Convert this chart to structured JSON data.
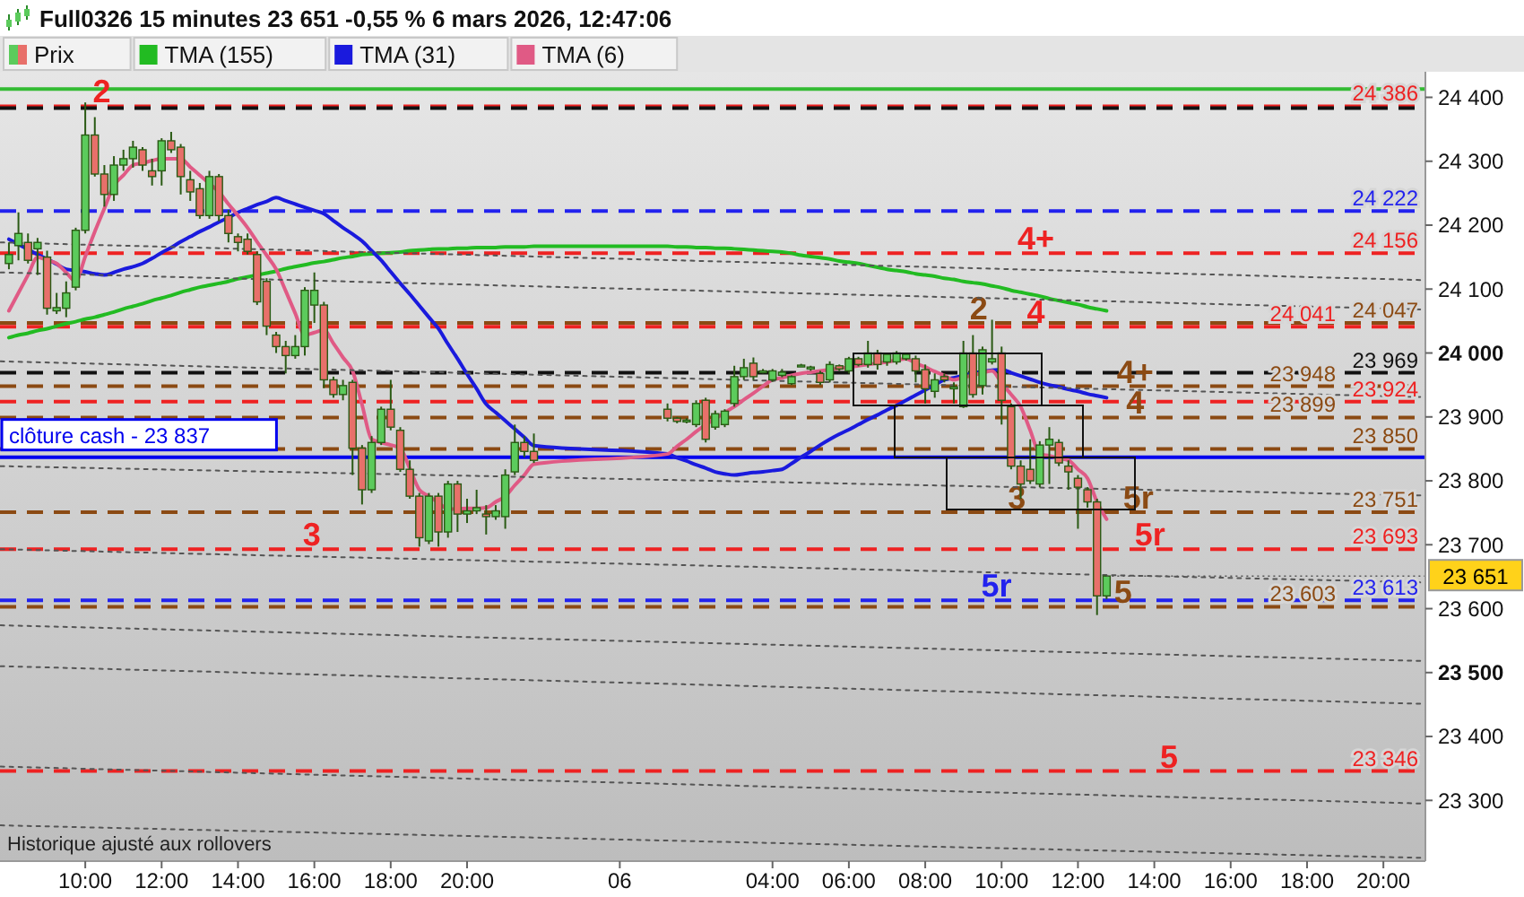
{
  "chart_data": {
    "type": "candlestick",
    "title": "Full0326 15 minutes 23 651 -0,55 % 6 mars 2026, 12:47:06",
    "legend": "top left",
    "xlim": [
      "2026-03-05T07:46",
      "2026-03-06T21:06"
    ],
    "ylim": [
      23205,
      24440
    ],
    "xticks": [
      {
        "value": "2026-03-05T10:00",
        "label": "10:00"
      },
      {
        "value": "2026-03-05T12:00",
        "label": "12:00"
      },
      {
        "value": "2026-03-05T14:00",
        "label": "14:00"
      },
      {
        "value": "2026-03-05T16:00",
        "label": "16:00"
      },
      {
        "value": "2026-03-05T18:00",
        "label": "18:00"
      },
      {
        "value": "2026-03-05T20:00",
        "label": "20:00"
      },
      {
        "value": "2026-03-06T00:00",
        "label": "06"
      },
      {
        "value": "2026-03-06T04:00",
        "label": "04:00"
      },
      {
        "value": "2026-03-06T06:00",
        "label": "06:00"
      },
      {
        "value": "2026-03-06T08:00",
        "label": "08:00"
      },
      {
        "value": "2026-03-06T10:00",
        "label": "10:00"
      },
      {
        "value": "2026-03-06T12:00",
        "label": "12:00"
      },
      {
        "value": "2026-03-06T14:00",
        "label": "14:00"
      },
      {
        "value": "2026-03-06T16:00",
        "label": "16:00"
      },
      {
        "value": "2026-03-06T18:00",
        "label": "18:00"
      },
      {
        "value": "2026-03-06T20:00",
        "label": "20:00"
      }
    ],
    "yticks": [
      {
        "value": 23300,
        "label": "23 300"
      },
      {
        "value": 23400,
        "label": "23 400"
      },
      {
        "value": 23500,
        "label": "23 500"
      },
      {
        "value": 23600,
        "label": "23 600"
      },
      {
        "value": 23700,
        "label": "23 700"
      },
      {
        "value": 23800,
        "label": "23 800"
      },
      {
        "value": 23900,
        "label": "23 900"
      },
      {
        "value": 24000,
        "label": "24 000"
      },
      {
        "value": 24100,
        "label": "24 100"
      },
      {
        "value": 24200,
        "label": "24 200"
      },
      {
        "value": 24300,
        "label": "24 300"
      },
      {
        "value": 24400,
        "label": "24 400"
      }
    ],
    "x": [
      "2026-03-05T08:00",
      "2026-03-05T08:15",
      "2026-03-05T08:30",
      "2026-03-05T08:45",
      "2026-03-05T09:00",
      "2026-03-05T09:15",
      "2026-03-05T09:30",
      "2026-03-05T09:45",
      "2026-03-05T10:00",
      "2026-03-05T10:15",
      "2026-03-05T10:30",
      "2026-03-05T10:45",
      "2026-03-05T11:00",
      "2026-03-05T11:15",
      "2026-03-05T11:30",
      "2026-03-05T11:45",
      "2026-03-05T12:00",
      "2026-03-05T12:15",
      "2026-03-05T12:30",
      "2026-03-05T12:45",
      "2026-03-05T13:00",
      "2026-03-05T13:15",
      "2026-03-05T13:30",
      "2026-03-05T13:45",
      "2026-03-05T14:00",
      "2026-03-05T14:15",
      "2026-03-05T14:30",
      "2026-03-05T14:45",
      "2026-03-05T15:00",
      "2026-03-05T15:15",
      "2026-03-05T15:30",
      "2026-03-05T15:45",
      "2026-03-05T16:00",
      "2026-03-05T16:15",
      "2026-03-05T16:30",
      "2026-03-05T16:45",
      "2026-03-05T17:00",
      "2026-03-05T17:15",
      "2026-03-05T17:30",
      "2026-03-05T17:45",
      "2026-03-05T18:00",
      "2026-03-05T18:15",
      "2026-03-05T18:30",
      "2026-03-05T18:45",
      "2026-03-05T19:00",
      "2026-03-05T19:15",
      "2026-03-05T19:30",
      "2026-03-05T19:45",
      "2026-03-05T20:00",
      "2026-03-05T20:15",
      "2026-03-05T20:30",
      "2026-03-05T20:45",
      "2026-03-05T21:00",
      "2026-03-05T21:15",
      "2026-03-05T21:30",
      "2026-03-05T21:45",
      "2026-03-06T01:15",
      "2026-03-06T01:30",
      "2026-03-06T01:45",
      "2026-03-06T02:00",
      "2026-03-06T02:15",
      "2026-03-06T02:30",
      "2026-03-06T02:45",
      "2026-03-06T03:00",
      "2026-03-06T03:15",
      "2026-03-06T03:30",
      "2026-03-06T03:45",
      "2026-03-06T04:00",
      "2026-03-06T04:15",
      "2026-03-06T04:30",
      "2026-03-06T04:45",
      "2026-03-06T05:00",
      "2026-03-06T05:15",
      "2026-03-06T05:30",
      "2026-03-06T05:45",
      "2026-03-06T06:00",
      "2026-03-06T06:15",
      "2026-03-06T06:30",
      "2026-03-06T06:45",
      "2026-03-06T07:00",
      "2026-03-06T07:15",
      "2026-03-06T07:30",
      "2026-03-06T07:45",
      "2026-03-06T08:00",
      "2026-03-06T08:15",
      "2026-03-06T08:30",
      "2026-03-06T08:45",
      "2026-03-06T09:00",
      "2026-03-06T09:15",
      "2026-03-06T09:30",
      "2026-03-06T09:45",
      "2026-03-06T10:00",
      "2026-03-06T10:15",
      "2026-03-06T10:30",
      "2026-03-06T10:45",
      "2026-03-06T11:00",
      "2026-03-06T11:15",
      "2026-03-06T11:30",
      "2026-03-06T11:45",
      "2026-03-06T12:00",
      "2026-03-06T12:15",
      "2026-03-06T12:30",
      "2026-03-06T12:45"
    ],
    "series": [
      {
        "name": "Prix",
        "colors": [
          "#5ccb5c",
          "#5ccb5c",
          "#e8706a",
          "#5ccb5c",
          "#e8706a",
          "#5ccb5c",
          "#5ccb5c",
          "#5ccb5c",
          "#5ccb5c",
          "#e8706a",
          "#e8706a",
          "#5ccb5c",
          "#5ccb5c",
          "#5ccb5c",
          "#e8706a",
          "#e8706a",
          "#5ccb5c",
          "#e8706a",
          "#e8706a",
          "#e8706a",
          "#e8706a",
          "#5ccb5c",
          "#e8706a",
          "#e8706a",
          "#e8706a",
          "#e8706a",
          "#e8706a",
          "#e8706a",
          "#e8706a",
          "#e8706a",
          "#5ccb5c",
          "#5ccb5c",
          "#5ccb5c",
          "#e8706a",
          "#e8706a",
          "#5ccb5c",
          "#e8706a",
          "#e8706a",
          "#5ccb5c",
          "#5ccb5c",
          "#e8706a",
          "#e8706a",
          "#e8706a",
          "#e8706a",
          "#5ccb5c",
          "#e8706a",
          "#5ccb5c",
          "#e8706a",
          "#5ccb5c",
          "#5ccb5c",
          "#e8706a",
          "#5ccb5c",
          "#5ccb5c",
          "#5ccb5c",
          "#e8706a",
          "#e8706a",
          "#e8706a",
          "#e8706a",
          "#5ccb5c",
          "#5ccb5c",
          "#e8706a",
          "#5ccb5c",
          "#5ccb5c",
          "#5ccb5c",
          "#5ccb5c",
          "#e8706a",
          "#5ccb5c",
          "#5ccb5c",
          "#5ccb5c",
          "#5ccb5c",
          "#5ccb5c",
          "#5ccb5c",
          "#e8706a",
          "#5ccb5c",
          "#e8706a",
          "#5ccb5c",
          "#e8706a",
          "#5ccb5c",
          "#e8706a",
          "#5ccb5c",
          "#5ccb5c",
          "#5ccb5c",
          "#e8706a",
          "#e8706a",
          "#5ccb5c",
          "#e8706a",
          "#5ccb5c",
          "#5ccb5c",
          "#e8706a",
          "#5ccb5c",
          "#5ccb5c",
          "#e8706a",
          "#e8706a",
          "#e8706a",
          "#e8706a",
          "#5ccb5c",
          "#5ccb5c",
          "#e8706a",
          "#e8706a",
          "#e8706a",
          "#e8706a",
          "#e8706a",
          "#5ccb5c"
        ],
        "ohlc": [
          [
            24140,
            24173,
            24131,
            24154
          ],
          [
            24168,
            24220,
            24145,
            24187
          ],
          [
            24173,
            24187,
            24140,
            24145
          ],
          [
            24163,
            24180,
            24122,
            24173
          ],
          [
            24150,
            24160,
            24060,
            24070
          ],
          [
            24066,
            24094,
            24061,
            24071
          ],
          [
            24070,
            24112,
            24056,
            24094
          ],
          [
            24103,
            24196,
            24098,
            24192
          ],
          [
            24192,
            24392,
            24187,
            24341
          ],
          [
            24341,
            24369,
            24276,
            24280
          ],
          [
            24280,
            24294,
            24229,
            24248
          ],
          [
            24248,
            24308,
            24238,
            24294
          ],
          [
            24294,
            24318,
            24285,
            24304
          ],
          [
            24304,
            24332,
            24290,
            24322
          ],
          [
            24318,
            24322,
            24285,
            24294
          ],
          [
            24285,
            24304,
            24262,
            24276
          ],
          [
            24285,
            24336,
            24262,
            24332
          ],
          [
            24332,
            24346,
            24313,
            24318
          ],
          [
            24322,
            24327,
            24248,
            24276
          ],
          [
            24271,
            24285,
            24238,
            24252
          ],
          [
            24257,
            24266,
            24210,
            24215
          ],
          [
            24215,
            24285,
            24210,
            24276
          ],
          [
            24276,
            24280,
            24206,
            24215
          ],
          [
            24215,
            24224,
            24173,
            24187
          ],
          [
            24182,
            24187,
            24159,
            24173
          ],
          [
            24178,
            24187,
            24154,
            24159
          ],
          [
            24154,
            24159,
            24075,
            24080
          ],
          [
            24112,
            24117,
            24028,
            24042
          ],
          [
            24028,
            24033,
            24000,
            24010
          ],
          [
            24010,
            24019,
            23968,
            23996
          ],
          [
            23996,
            24028,
            23991,
            24010
          ],
          [
            24010,
            24103,
            23996,
            24098
          ],
          [
            24075,
            24126,
            24047,
            24098
          ],
          [
            24075,
            24080,
            23945,
            23958
          ],
          [
            23958,
            23963,
            23930,
            23935
          ],
          [
            23935,
            23958,
            23926,
            23949
          ],
          [
            23954,
            23958,
            23809,
            23851
          ],
          [
            23851,
            23856,
            23763,
            23786
          ],
          [
            23786,
            23870,
            23781,
            23860
          ],
          [
            23860,
            23916,
            23856,
            23912
          ],
          [
            23912,
            23958,
            23879,
            23884
          ],
          [
            23879,
            23884,
            23814,
            23818
          ],
          [
            23818,
            23832,
            23772,
            23776
          ],
          [
            23776,
            23781,
            23697,
            23711
          ],
          [
            23706,
            23781,
            23701,
            23776
          ],
          [
            23776,
            23781,
            23697,
            23720
          ],
          [
            23720,
            23800,
            23711,
            23795
          ],
          [
            23795,
            23800,
            23720,
            23748
          ],
          [
            23748,
            23772,
            23734,
            23753
          ],
          [
            23753,
            23786,
            23748,
            23758
          ],
          [
            23748,
            23762,
            23716,
            23744
          ],
          [
            23744,
            23762,
            23739,
            23753
          ],
          [
            23744,
            23818,
            23725,
            23809
          ],
          [
            23814,
            23888,
            23809,
            23860
          ],
          [
            23860,
            23870,
            23837,
            23846
          ],
          [
            23846,
            23874,
            23828,
            23832
          ],
          [
            23912,
            23921,
            23893,
            23898
          ],
          [
            23898,
            23900,
            23890,
            23893
          ],
          [
            23893,
            23898,
            23890,
            23895
          ],
          [
            23888,
            23926,
            23884,
            23921
          ],
          [
            23926,
            23930,
            23860,
            23865
          ],
          [
            23884,
            23910,
            23880,
            23905
          ],
          [
            23888,
            23912,
            23884,
            23909
          ],
          [
            23921,
            23980,
            23916,
            23963
          ],
          [
            23963,
            23991,
            23958,
            23977
          ],
          [
            23984,
            23993,
            23958,
            23963
          ],
          [
            23970,
            23975,
            23968,
            23972
          ],
          [
            23958,
            23975,
            23955,
            23972
          ],
          [
            23965,
            23975,
            23962,
            23970
          ],
          [
            23952,
            23965,
            23950,
            23963
          ],
          [
            23981,
            23983,
            23979,
            23981
          ],
          [
            23975,
            23980,
            23972,
            23978
          ],
          [
            23968,
            23972,
            23950,
            23954
          ],
          [
            23958,
            23987,
            23954,
            23982
          ],
          [
            23980,
            23982,
            23972,
            23975
          ],
          [
            23972,
            23994,
            23968,
            23991
          ],
          [
            23991,
            23994,
            23979,
            23982
          ],
          [
            23982,
            24019,
            23977,
            24000
          ],
          [
            24000,
            24005,
            23974,
            23982
          ],
          [
            23986,
            24000,
            23980,
            23998
          ],
          [
            23986,
            24003,
            23982,
            24000
          ],
          [
            23991,
            24000,
            23988,
            23998
          ],
          [
            23991,
            23996,
            23954,
            23972
          ],
          [
            23974,
            23982,
            23921,
            23944
          ],
          [
            23940,
            23968,
            23930,
            23958
          ],
          [
            23963,
            23968,
            23954,
            23958
          ],
          [
            23944,
            23954,
            23921,
            23947
          ],
          [
            23916,
            24019,
            23914,
            24000
          ],
          [
            24000,
            24028,
            23930,
            23935
          ],
          [
            23949,
            24010,
            23935,
            24005
          ],
          [
            23986,
            24052,
            23982,
            23991
          ],
          [
            24000,
            24010,
            23888,
            23926
          ],
          [
            23916,
            23921,
            23818,
            23823
          ],
          [
            23823,
            23832,
            23772,
            23795
          ],
          [
            23818,
            23865,
            23795,
            23800
          ],
          [
            23795,
            23862,
            23790,
            23856
          ],
          [
            23856,
            23884,
            23795,
            23865
          ],
          [
            23860,
            23865,
            23823,
            23828
          ],
          [
            23823,
            23832,
            23786,
            23814
          ],
          [
            23804,
            23809,
            23725,
            23790
          ],
          [
            23786,
            23790,
            23758,
            23767
          ],
          [
            23767,
            23772,
            23590,
            23620
          ],
          [
            23620,
            23651,
            23615,
            23651
          ]
        ]
      },
      {
        "name": "TMA (155)",
        "type": "line",
        "color": "#22bb22",
        "values": [
          24024,
          24028,
          24031,
          24035,
          24038,
          24042,
          24046,
          24049,
          24053,
          24056,
          24060,
          24064,
          24069,
          24073,
          24077,
          24082,
          24086,
          24090,
          24095,
          24099,
          24103,
          24106,
          24109,
          24112,
          24116,
          24119,
          24122,
          24125,
          24128,
          24132,
          24135,
          24138,
          24141,
          24143,
          24146,
          24149,
          24151,
          24154,
          24155,
          24156,
          24157,
          24158,
          24160,
          24161,
          24162,
          24163,
          24163,
          24164,
          24164,
          24165,
          24165,
          24165,
          24166,
          24166,
          24166,
          24167,
          24167,
          24166,
          24166,
          24165,
          24165,
          24164,
          24164,
          24163,
          24162,
          24161,
          24160,
          24159,
          24158,
          24156,
          24153,
          24151,
          24149,
          24147,
          24144,
          24142,
          24140,
          24137,
          24134,
          24131,
          24129,
          24127,
          24124,
          24122,
          24120,
          24117,
          24115,
          24112,
          24110,
          24108,
          24105,
          24102,
          24098,
          24095,
          24092,
          24089,
          24085,
          24082,
          24079,
          24076,
          24072,
          24069,
          24066
        ]
      },
      {
        "name": "TMA (31)",
        "type": "line",
        "color": "#1a1add",
        "values": [
          24178,
          24170,
          24162,
          24154,
          24147,
          24139,
          24131,
          24129,
          24127,
          24124,
          24122,
          24126,
          24131,
          24135,
          24140,
          24148,
          24157,
          24165,
          24174,
          24182,
          24190,
          24197,
          24205,
          24212,
          24220,
          24226,
          24232,
          24237,
          24243,
          24238,
          24233,
          24228,
          24223,
          24218,
          24207,
          24196,
          24186,
          24175,
          24160,
          24145,
          24127,
          24109,
          24092,
          24074,
          24056,
          24038,
          24014,
          23991,
          23967,
          23944,
          23920,
          23907,
          23894,
          23881,
          23868,
          23855,
          23842,
          23836,
          23831,
          23825,
          23820,
          23814,
          23811,
          23809,
          23811,
          23813,
          23814,
          23816,
          23818,
          23827,
          23837,
          23846,
          23856,
          23865,
          23873,
          23880,
          23888,
          23896,
          23903,
          23911,
          23918,
          23926,
          23934,
          23942,
          23950,
          23958,
          23961,
          23965,
          23968,
          23971,
          23973,
          23974,
          23969,
          23964,
          23959,
          23954,
          23950,
          23947,
          23943,
          23940,
          23936,
          23933,
          23930
        ]
      },
      {
        "name": "TMA (6)",
        "type": "line",
        "color": "#e05a85",
        "values": [
          24066,
          24094,
          24122,
          24150,
          24145,
          24140,
          24126,
          24112,
          24151,
          24190,
          24226,
          24262,
          24278,
          24294,
          24297,
          24301,
          24304,
          24304,
          24304,
          24291,
          24278,
          24265,
          24252,
          24233,
          24215,
          24196,
          24174,
          24153,
          24131,
          24097,
          24062,
          24028,
          24032,
          24036,
          24015,
          23993,
          23972,
          23919,
          23865,
          23860,
          23856,
          23851,
          23819,
          23786,
          23776,
          23766,
          23756,
          23756,
          23757,
          23757,
          23758,
          23767,
          23776,
          23793,
          23809,
          23826,
          23842,
          23854,
          23865,
          23877,
          23888,
          23897,
          23907,
          23916,
          23927,
          23937,
          23948,
          23958,
          23961,
          23965,
          23968,
          23970,
          23972,
          23974,
          23976,
          23978,
          23980,
          23982,
          23984,
          23986,
          23989,
          23991,
          23984,
          23978,
          23971,
          23965,
          23958,
          23962,
          23965,
          23969,
          23972,
          23953,
          23935,
          23916,
          23879,
          23842,
          23839,
          23835,
          23832,
          23818,
          23804,
          23767,
          23740
        ]
      },
      {
        "type": "line",
        "color": "#555555",
        "line_style": "dotted",
        "x": [
          "2026-03-05T07:47",
          "2026-03-06T21:05"
        ],
        "values": [
          24173,
          24114
        ]
      },
      {
        "type": "line",
        "color": "#555555",
        "line_style": "dotted",
        "x": [
          "2026-03-05T07:47",
          "2026-03-06T21:05"
        ],
        "values": [
          24126,
          24068
        ]
      },
      {
        "type": "line",
        "color": "#555555",
        "line_style": "dotted",
        "x": [
          "2026-03-05T07:47",
          "2026-03-06T21:05"
        ],
        "values": [
          23987,
          23931
        ]
      },
      {
        "type": "line",
        "color": "#555555",
        "line_style": "dotted",
        "x": [
          "2026-03-05T07:47",
          "2026-03-06T21:05"
        ],
        "values": [
          23823,
          23777
        ]
      },
      {
        "type": "line",
        "color": "#555555",
        "line_style": "dotted",
        "x": [
          "2026-03-05T07:47",
          "2026-03-06T21:05"
        ],
        "values": [
          23693,
          23641
        ]
      },
      {
        "type": "line",
        "color": "#555555",
        "line_style": "dotted",
        "x": [
          "2026-03-05T07:47",
          "2026-03-06T21:05"
        ],
        "values": [
          23574,
          23518
        ]
      },
      {
        "type": "line",
        "color": "#555555",
        "line_style": "dotted",
        "x": [
          "2026-03-05T07:47",
          "2026-03-06T21:05"
        ],
        "values": [
          23510,
          23451
        ]
      },
      {
        "type": "line",
        "color": "#555555",
        "line_style": "dotted",
        "x": [
          "2026-03-05T07:47",
          "2026-03-06T21:05"
        ],
        "values": [
          23353,
          23295
        ]
      },
      {
        "type": "line",
        "color": "#555555",
        "line_style": "dotted",
        "x": [
          "2026-03-05T07:47",
          "2026-03-06T21:05"
        ],
        "values": [
          23261,
          23210
        ]
      }
    ],
    "ref_lines": [
      {
        "axis": "y",
        "value": 24413,
        "color": "#33bb33",
        "line_style": "solid"
      },
      {
        "axis": "y",
        "value": 24386,
        "label": "24 386",
        "color": "#ee2222",
        "line_style": "dashed"
      },
      {
        "axis": "y",
        "value": 24383,
        "color": "#111111",
        "line_style": "dashed"
      },
      {
        "axis": "y",
        "value": 24222,
        "label": "24 222",
        "color": "#2222ee",
        "line_style": "dashed"
      },
      {
        "axis": "y",
        "value": 24156,
        "label": "24 156",
        "color": "#ee2222",
        "line_style": "dashed"
      },
      {
        "axis": "y",
        "value": 24047,
        "label": "24 047",
        "color": "#8b4a13",
        "line_style": "dashed"
      },
      {
        "axis": "y",
        "value": 24041,
        "label": "24 041",
        "color": "#ee2222",
        "line_style": "dashed"
      },
      {
        "axis": "y",
        "value": 23969,
        "label": "23 969",
        "color": "#111111",
        "line_style": "dashed"
      },
      {
        "axis": "y",
        "value": 23948,
        "label": "23 948",
        "color": "#8b4a13",
        "line_style": "dashed"
      },
      {
        "axis": "y",
        "value": 23924,
        "label": "23 924",
        "color": "#ee2222",
        "line_style": "dashed"
      },
      {
        "axis": "y",
        "value": 23899,
        "label": "23 899",
        "color": "#8b4a13",
        "line_style": "dashed"
      },
      {
        "axis": "y",
        "value": 23850,
        "label": "23 850",
        "color": "#8b4a13",
        "line_style": "dashed"
      },
      {
        "axis": "y",
        "value": 23837,
        "label": "clôture cash -  23 837",
        "color": "#0000ee",
        "line_style": "solid"
      },
      {
        "axis": "y",
        "value": 23751,
        "label": "23 751",
        "color": "#8b4a13",
        "line_style": "dashed"
      },
      {
        "axis": "y",
        "value": 23693,
        "label": "23 693",
        "color": "#ee2222",
        "line_style": "dashed"
      },
      {
        "axis": "y",
        "value": 23613,
        "label": "23 613",
        "color": "#2222ee",
        "line_style": "dashed"
      },
      {
        "axis": "y",
        "value": 23603,
        "label": "23 603",
        "color": "#8b4a13",
        "line_style": "dashed"
      },
      {
        "axis": "y",
        "value": 23346,
        "label": "23 346",
        "color": "#ee2222",
        "line_style": "dashed"
      }
    ],
    "annotations": [
      {
        "text": "2",
        "x": "2026-03-05T10:26",
        "y": 24386
      },
      {
        "text": "3",
        "x": "2026-03-05T15:56",
        "y": 23693
      },
      {
        "text": "4+",
        "x": "2026-03-06T10:54",
        "y": 24156
      },
      {
        "text": "4",
        "x": "2026-03-06T10:54",
        "y": 24041
      },
      {
        "text": "5r",
        "x": "2026-03-06T13:53",
        "y": 23693
      },
      {
        "text": "5r",
        "x": "2026-03-06T09:52",
        "y": 23613
      },
      {
        "text": "5",
        "x": "2026-03-06T14:23",
        "y": 23346
      },
      {
        "text": "2",
        "x": "2026-03-06T09:24",
        "y": 24047
      },
      {
        "text": "4+",
        "x": "2026-03-06T13:30",
        "y": 23948
      },
      {
        "text": "4",
        "x": "2026-03-06T13:30",
        "y": 23899
      },
      {
        "text": "3",
        "x": "2026-03-06T10:24",
        "y": 23751
      },
      {
        "text": "5r",
        "x": "2026-03-06T13:35",
        "y": 23751
      },
      {
        "text": "5",
        "x": "2026-03-06T13:11",
        "y": 23603
      },
      {
        "text": "23 651",
        "x": "2026-03-06T12:45",
        "y": 23651
      },
      "Historique ajusté aux rollovers"
    ]
  }
}
